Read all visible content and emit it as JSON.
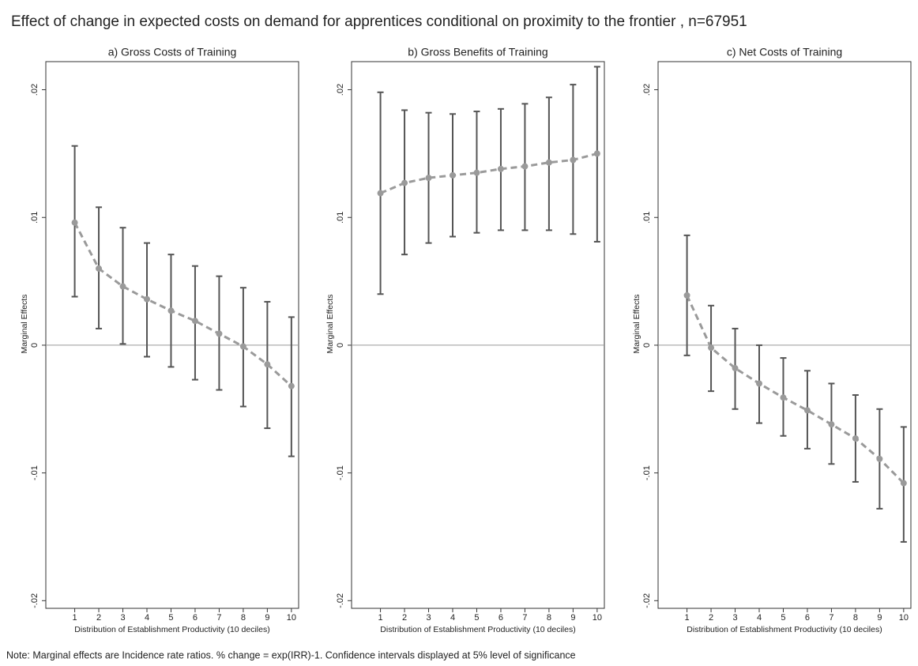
{
  "title": "Effect of change in expected costs on demand for apprentices conditional on proximity to the frontier , n=67951",
  "note": "Note: Marginal effects are Incidence rate ratios. % change = exp(IRR)-1. Confidence intervals displayed at 5% level of significance",
  "chart_data": [
    {
      "type": "errorbar",
      "title": "a) Gross Costs of Training",
      "x_label": "Distribution of Establishment Productivity (10 deciles)",
      "y_label": "Marginal Effects",
      "x": [
        1,
        2,
        3,
        4,
        5,
        6,
        7,
        8,
        9,
        10
      ],
      "values": [
        0.0096,
        0.006,
        0.0046,
        0.0036,
        0.0027,
        0.0019,
        0.0009,
        -0.0001,
        -0.0015,
        -0.0032
      ],
      "lower": [
        0.0038,
        0.0013,
        0.0001,
        -0.0009,
        -0.0017,
        -0.0027,
        -0.0035,
        -0.0048,
        -0.0065,
        -0.0087
      ],
      "upper": [
        0.0156,
        0.0108,
        0.0092,
        0.008,
        0.0071,
        0.0062,
        0.0054,
        0.0045,
        0.0034,
        0.0022
      ],
      "color": "#9a9a9a",
      "bar_color": "#555555",
      "xlim": [
        -0.2,
        10.3
      ],
      "xticks": [
        1,
        2,
        3,
        4,
        5,
        6,
        7,
        8,
        9,
        10
      ],
      "ylim": [
        -0.0206,
        0.0222
      ],
      "yticks": [
        {
          "value": -0.02,
          "label": "-.02"
        },
        {
          "value": -0.01,
          "label": "-.01"
        },
        0,
        {
          "value": 0.01,
          "label": ".01"
        },
        {
          "value": 0.02,
          "label": ".02"
        }
      ],
      "yline": 0
    },
    {
      "type": "errorbar",
      "title": "b) Gross Benefits of Training",
      "x_label": "Distribution of Establishment Productivity (10 deciles)",
      "y_label": "Marginal Effects",
      "x": [
        1,
        2,
        3,
        4,
        5,
        6,
        7,
        8,
        9,
        10
      ],
      "values": [
        0.0119,
        0.0127,
        0.0131,
        0.0133,
        0.0135,
        0.0138,
        0.014,
        0.0143,
        0.0145,
        0.015
      ],
      "lower": [
        0.004,
        0.0071,
        0.008,
        0.0085,
        0.0088,
        0.009,
        0.009,
        0.009,
        0.0087,
        0.0081
      ],
      "upper": [
        0.0198,
        0.0184,
        0.0182,
        0.0181,
        0.0183,
        0.0185,
        0.0189,
        0.0194,
        0.0204,
        0.0218
      ],
      "color": "#9a9a9a",
      "bar_color": "#555555",
      "xlim": [
        -0.2,
        10.3
      ],
      "xticks": [
        1,
        2,
        3,
        4,
        5,
        6,
        7,
        8,
        9,
        10
      ],
      "ylim": [
        -0.0206,
        0.0222
      ],
      "yticks": [
        {
          "value": -0.02,
          "label": "-.02"
        },
        {
          "value": -0.01,
          "label": "-.01"
        },
        0,
        {
          "value": 0.01,
          "label": ".01"
        },
        {
          "value": 0.02,
          "label": ".02"
        }
      ],
      "yline": 0
    },
    {
      "type": "errorbar",
      "title": "c) Net Costs of Training",
      "x_label": "Distribution of Establishment Productivity (10 deciles)",
      "y_label": "Marginal Effects",
      "x": [
        1,
        2,
        3,
        4,
        5,
        6,
        7,
        8,
        9,
        10
      ],
      "values": [
        0.0039,
        -0.0002,
        -0.0018,
        -0.003,
        -0.0041,
        -0.0051,
        -0.0062,
        -0.0073,
        -0.0089,
        -0.0108
      ],
      "lower": [
        -0.0008,
        -0.0036,
        -0.005,
        -0.0061,
        -0.0071,
        -0.0081,
        -0.0093,
        -0.0107,
        -0.0128,
        -0.0154
      ],
      "upper": [
        0.0086,
        0.0031,
        0.0013,
        0.0,
        -0.001,
        -0.002,
        -0.003,
        -0.0039,
        -0.005,
        -0.0064
      ],
      "color": "#9a9a9a",
      "bar_color": "#555555",
      "xlim": [
        -0.2,
        10.3
      ],
      "xticks": [
        1,
        2,
        3,
        4,
        5,
        6,
        7,
        8,
        9,
        10
      ],
      "ylim": [
        -0.0206,
        0.0222
      ],
      "yticks": [
        {
          "value": -0.02,
          "label": "-.02"
        },
        {
          "value": -0.01,
          "label": "-.01"
        },
        0,
        {
          "value": 0.01,
          "label": ".01"
        },
        {
          "value": 0.02,
          "label": ".02"
        }
      ],
      "yline": 0
    }
  ]
}
